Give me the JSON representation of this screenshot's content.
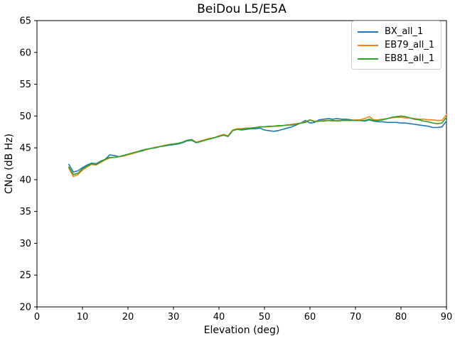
{
  "chart_data": {
    "type": "line",
    "title": "BeiDou L5/E5A",
    "xlabel": "Elevation (deg)",
    "ylabel": "CNo (dB Hz)",
    "xlim": [
      0,
      90
    ],
    "ylim": [
      20,
      65
    ],
    "xticks": [
      0,
      10,
      20,
      30,
      40,
      50,
      60,
      70,
      80,
      90
    ],
    "yticks": [
      20,
      25,
      30,
      35,
      40,
      45,
      50,
      55,
      60,
      65
    ],
    "grid": false,
    "legend_position": "upper right",
    "axis_color": "#000000",
    "x": [
      7,
      8,
      9,
      10,
      11,
      12,
      13,
      14,
      15,
      16,
      17,
      18,
      19,
      20,
      21,
      22,
      23,
      24,
      25,
      26,
      27,
      28,
      29,
      30,
      31,
      32,
      33,
      34,
      35,
      36,
      37,
      38,
      39,
      40,
      41,
      42,
      43,
      44,
      45,
      46,
      47,
      48,
      49,
      50,
      51,
      52,
      53,
      54,
      55,
      56,
      57,
      58,
      59,
      60,
      61,
      62,
      63,
      64,
      65,
      66,
      67,
      68,
      69,
      70,
      71,
      72,
      73,
      74,
      75,
      76,
      77,
      78,
      79,
      80,
      81,
      82,
      83,
      84,
      85,
      86,
      87,
      88,
      89,
      90
    ],
    "series": [
      {
        "name": "BX_all_1",
        "color": "#1f77b4",
        "values": [
          42.4,
          41.2,
          41.4,
          41.9,
          42.3,
          42.6,
          42.5,
          42.9,
          43.2,
          43.9,
          43.8,
          43.6,
          43.8,
          44.0,
          44.2,
          44.3,
          44.5,
          44.7,
          44.9,
          45.0,
          45.2,
          45.3,
          45.4,
          45.5,
          45.6,
          45.8,
          46.1,
          46.2,
          45.8,
          46.0,
          46.3,
          46.4,
          46.6,
          46.8,
          47.0,
          46.8,
          47.7,
          47.9,
          47.8,
          47.9,
          48.0,
          48.0,
          48.1,
          47.8,
          47.7,
          47.6,
          47.7,
          47.9,
          48.1,
          48.3,
          48.6,
          48.9,
          49.3,
          48.9,
          49.0,
          49.4,
          49.5,
          49.6,
          49.5,
          49.6,
          49.5,
          49.5,
          49.4,
          49.3,
          49.3,
          49.2,
          49.4,
          49.2,
          49.1,
          49.1,
          49.0,
          49.0,
          49.0,
          48.9,
          48.9,
          48.8,
          48.7,
          48.6,
          48.5,
          48.4,
          48.2,
          48.2,
          48.3,
          49.2
        ]
      },
      {
        "name": "EB79_all_1",
        "color": "#ff7f0e",
        "values": [
          41.8,
          40.5,
          40.8,
          41.5,
          42.0,
          42.4,
          42.3,
          42.7,
          43.1,
          43.4,
          43.5,
          43.6,
          43.7,
          43.9,
          44.1,
          44.3,
          44.6,
          44.7,
          44.9,
          45.1,
          45.2,
          45.4,
          45.5,
          45.6,
          45.7,
          45.9,
          46.2,
          46.3,
          45.9,
          46.1,
          46.3,
          46.5,
          46.6,
          46.9,
          47.1,
          46.9,
          47.8,
          48.0,
          48.0,
          48.1,
          48.1,
          48.2,
          48.3,
          48.3,
          48.3,
          48.4,
          48.4,
          48.5,
          48.6,
          48.7,
          48.8,
          48.9,
          49.1,
          49.4,
          49.2,
          49.2,
          49.3,
          49.3,
          49.2,
          49.3,
          49.3,
          49.3,
          49.3,
          49.4,
          49.4,
          49.6,
          49.9,
          49.4,
          49.4,
          49.5,
          49.6,
          49.7,
          49.8,
          49.8,
          49.7,
          49.7,
          49.6,
          49.5,
          49.5,
          49.4,
          49.4,
          49.3,
          49.3,
          50.2
        ]
      },
      {
        "name": "EB81_all_1",
        "color": "#2ca02c",
        "values": [
          42.0,
          40.8,
          41.0,
          41.7,
          42.1,
          42.5,
          42.4,
          42.8,
          43.2,
          43.5,
          43.5,
          43.6,
          43.8,
          44.0,
          44.2,
          44.4,
          44.6,
          44.8,
          44.9,
          45.0,
          45.2,
          45.3,
          45.5,
          45.6,
          45.7,
          45.9,
          46.2,
          46.3,
          45.8,
          46.0,
          46.2,
          46.4,
          46.6,
          46.8,
          47.0,
          46.8,
          47.7,
          47.9,
          47.9,
          48.0,
          48.1,
          48.2,
          48.3,
          48.3,
          48.4,
          48.4,
          48.5,
          48.5,
          48.6,
          48.6,
          48.7,
          48.9,
          49.0,
          49.4,
          49.1,
          49.2,
          49.2,
          49.3,
          49.3,
          49.2,
          49.3,
          49.3,
          49.3,
          49.3,
          49.3,
          49.3,
          49.5,
          49.3,
          49.3,
          49.4,
          49.6,
          49.8,
          49.9,
          50.0,
          49.9,
          49.7,
          49.5,
          49.4,
          49.2,
          49.1,
          48.9,
          48.8,
          48.9,
          49.8
        ]
      }
    ]
  }
}
